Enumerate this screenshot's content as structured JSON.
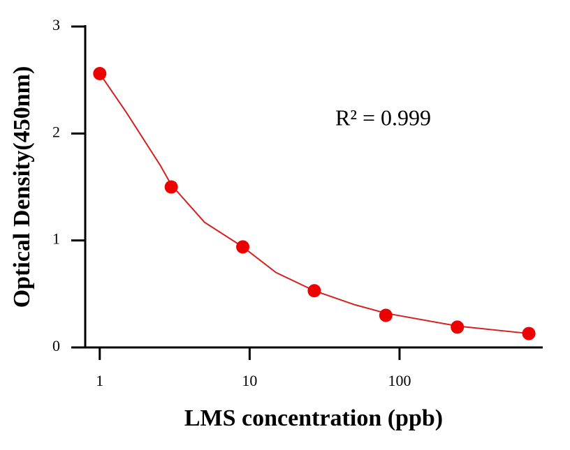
{
  "chart_data": {
    "type": "scatter",
    "x_label": "LMS concentration (ppb)",
    "y_label": "Optical Density(450nm)",
    "annotation": "R² = 0.999",
    "x_scale": "log",
    "xlim": [
      0.8,
      893
    ],
    "xticks": [
      1,
      10,
      100
    ],
    "ylim": [
      0,
      3
    ],
    "yticks": [
      0,
      1,
      2,
      3
    ],
    "series": [
      {
        "color": "#ee0000",
        "x": [
          1,
          3,
          9,
          27,
          81,
          243,
          729
        ],
        "values": [
          2.56,
          1.5,
          0.94,
          0.53,
          0.3,
          0.19,
          0.13
        ]
      }
    ],
    "fit": {
      "color": "#d42020",
      "x": [
        1,
        1.5,
        2.54,
        3,
        5,
        9,
        15,
        27,
        50,
        81,
        243,
        729
      ],
      "values": [
        2.56,
        2.2,
        1.7,
        1.52,
        1.17,
        0.94,
        0.7,
        0.53,
        0.4,
        0.32,
        0.2,
        0.13
      ]
    }
  }
}
